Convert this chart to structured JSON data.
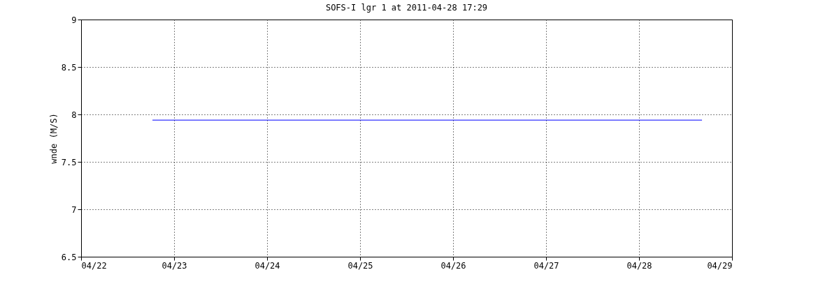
{
  "chart_data": {
    "type": "line",
    "title": "SOFS-I lgr 1 at 2011-04-28 17:29",
    "ylabel": "wnde (M/S)",
    "x": [
      "2011-04-22T18:25",
      "2011-04-28T16:15"
    ],
    "series": [
      {
        "color": "#0000ff",
        "values": [
          7.94,
          7.94
        ]
      }
    ],
    "xlim": [
      "2011-04-22",
      "2011-04-29"
    ],
    "xticks": [
      {
        "value": "2011-04-22",
        "label": "04/22"
      },
      {
        "value": "2011-04-23",
        "label": "04/23"
      },
      {
        "value": "2011-04-24",
        "label": "04/24"
      },
      {
        "value": "2011-04-25",
        "label": "04/25"
      },
      {
        "value": "2011-04-26",
        "label": "04/26"
      },
      {
        "value": "2011-04-27",
        "label": "04/27"
      },
      {
        "value": "2011-04-28",
        "label": "04/28"
      },
      {
        "value": "2011-04-29",
        "label": "04/29"
      }
    ],
    "ylim": [
      6.5,
      9
    ],
    "yticks": [
      6.5,
      7,
      7.5,
      8,
      8.5,
      9
    ],
    "grid": true,
    "line_style": "solid"
  }
}
